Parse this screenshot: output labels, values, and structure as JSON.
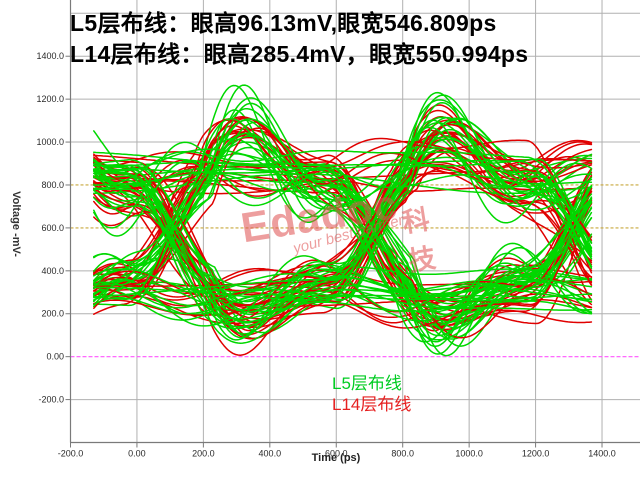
{
  "title": {
    "line1": "L5层布线：眼高96.13mV,眼宽546.809ps",
    "line2": "L14层布线：眼高285.4mV，眼宽550.994ps"
  },
  "watermark": {
    "brand": "Edadoc",
    "tagline": "your best partner",
    "suffix": "科技",
    "color": "#e05050"
  },
  "chart_data": {
    "type": "line",
    "subtype": "eye_diagram",
    "xlabel": "Time  (ps)",
    "ylabel": "Voltage  -mV-",
    "xlim": [
      -200,
      1513
    ],
    "ylim": [
      -400,
      1660
    ],
    "x_ticks": [
      -200,
      0,
      200,
      400,
      600,
      800,
      1000,
      1200,
      1400
    ],
    "x_tick_labels": [
      "-200.0",
      "0.00",
      "200.0",
      "400.0",
      "600.0",
      "800.0",
      "1000.0",
      "1200.0",
      "1400.0"
    ],
    "y_ticks": [
      -200,
      0,
      200,
      400,
      600,
      800,
      1000,
      1200,
      1400
    ],
    "y_tick_labels": [
      "-200.0",
      "0.00",
      "200.0",
      "400.0",
      "600.0",
      "800.0",
      "1000.0",
      "1200.0",
      "1400.0"
    ],
    "grid_values_mV": [
      -200,
      200,
      400,
      1000,
      1200,
      1400,
      1600
    ],
    "grid_on": true,
    "grid_color": "#b0b0b0",
    "axis_color": "#7a7a7a",
    "tick_label_color": "#2a2a2a",
    "ref_lines": [
      {
        "value_mV": 800,
        "color": "#c8a83c",
        "dash": "3,2"
      },
      {
        "value_mV": 600,
        "color": "#c8a83c",
        "dash": "3,2"
      },
      {
        "value_mV": 0,
        "color": "#ff55ff",
        "dash": "4,2"
      }
    ],
    "ui_ps": 600,
    "crossing_ps": 110,
    "t_range": [
      -130,
      1372
    ],
    "t_step": 7,
    "overshoot_peak_mV": 1260,
    "undershoot_min_mV": 60,
    "legend_position": "bottom-center",
    "series": [
      {
        "name": "L5层布线",
        "color": "#00d800",
        "legend_color": "#00cc22",
        "eye_height_mV": 96.13,
        "eye_width_ps": 546.809,
        "traces": 62,
        "high_mV": 870,
        "low_mV": 295,
        "spread_mV": 70,
        "ring_mV": 330,
        "seed": 7
      },
      {
        "name": "L14层布线",
        "color": "#e00000",
        "legend_color": "#e62020",
        "eye_height_mV": 285.4,
        "eye_width_ps": 550.994,
        "traces": 50,
        "high_mV": 880,
        "low_mV": 280,
        "spread_mV": 105,
        "ring_mV": 260,
        "seed": 13
      }
    ]
  }
}
